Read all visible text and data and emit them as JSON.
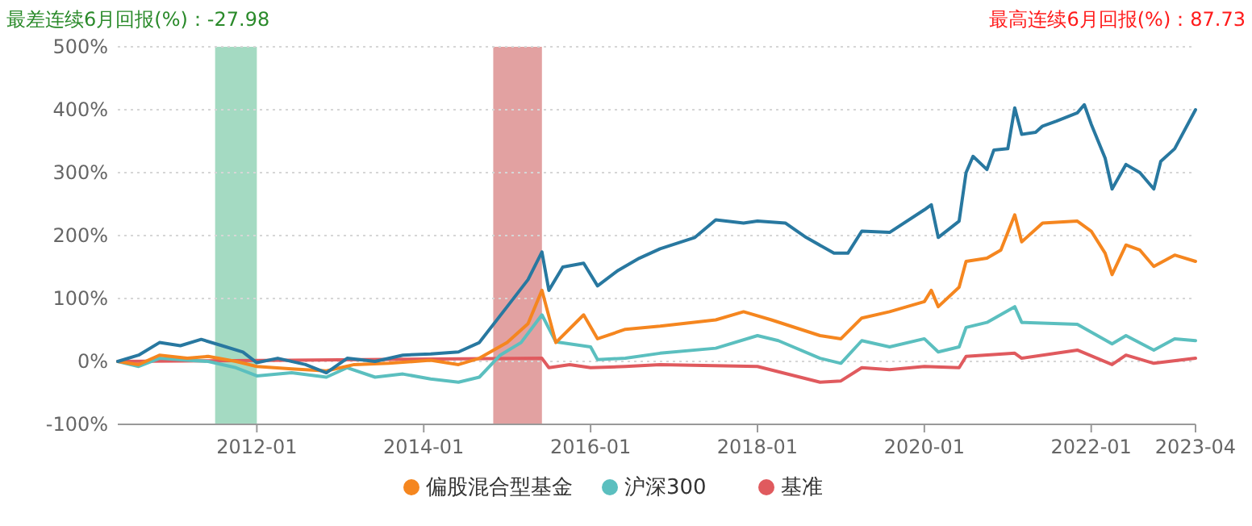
{
  "chart_data": {
    "type": "line",
    "annotations": [
      "最差连续6月回报(%)：-27.98",
      "最高连续6月回报(%)：87.73"
    ],
    "xlim": [
      "2010-05",
      "2023-04"
    ],
    "xticks": [
      "2012-01",
      "2014-01",
      "2016-01",
      "2018-01",
      "2020-01",
      "2022-01",
      "2023-04"
    ],
    "ylim": [
      -100,
      500
    ],
    "yticks": [
      {
        "value": -100,
        "label": "-100%"
      },
      {
        "value": 0,
        "label": "0%"
      },
      {
        "value": 100,
        "label": "100%"
      },
      {
        "value": 200,
        "label": "200%"
      },
      {
        "value": 300,
        "label": "300%"
      },
      {
        "value": 400,
        "label": "400%"
      },
      {
        "value": 500,
        "label": "500%"
      }
    ],
    "grid": "y",
    "legend": "bottom",
    "marker": "none",
    "line_style": "solid",
    "bands": [
      {
        "axis": "x",
        "from": "2011-07",
        "to": "2012-01",
        "color": "#9fd8bf"
      },
      {
        "axis": "x",
        "from": "2014-11",
        "to": "2015-06",
        "color": "#e09c9c"
      }
    ],
    "series": [
      {
        "color": "#2878a0",
        "x": [
          "2010-05",
          "2010-08",
          "2010-11",
          "2011-02",
          "2011-05",
          "2011-08",
          "2011-11",
          "2012-01",
          "2012-04",
          "2012-08",
          "2012-11",
          "2013-02",
          "2013-06",
          "2013-10",
          "2014-02",
          "2014-06",
          "2014-09",
          "2015-01",
          "2015-04",
          "2015-06",
          "2015-07",
          "2015-09",
          "2015-12",
          "2016-02",
          "2016-05",
          "2016-08",
          "2016-11",
          "2017-04",
          "2017-07",
          "2017-11",
          "2018-01",
          "2018-05",
          "2018-08",
          "2018-12",
          "2019-02",
          "2019-04",
          "2019-08",
          "2020-01",
          "2020-02",
          "2020-03",
          "2020-06",
          "2020-07",
          "2020-08",
          "2020-10",
          "2020-11",
          "2021-01",
          "2021-02",
          "2021-03",
          "2021-05",
          "2021-06",
          "2021-08",
          "2021-11",
          "2021-12",
          "2022-01",
          "2022-03",
          "2022-04",
          "2022-06",
          "2022-08",
          "2022-10",
          "2022-11",
          "2023-01",
          "2023-04"
        ],
        "values": [
          0,
          10,
          30,
          25,
          35,
          25,
          15,
          -2,
          5,
          -5,
          -18,
          5,
          0,
          10,
          12,
          15,
          30,
          87,
          130,
          174,
          113,
          150,
          156,
          120,
          145,
          164,
          179,
          197,
          225,
          220,
          223,
          220,
          197,
          172,
          172,
          207,
          205,
          241,
          249,
          197,
          223,
          300,
          326,
          305,
          336,
          338,
          403,
          361,
          364,
          374,
          382,
          395,
          408,
          377,
          323,
          274,
          313,
          300,
          274,
          318,
          338,
          400
        ]
      },
      {
        "name": "偏股混合型基金",
        "color": "#f5861f",
        "x": [
          "2010-05",
          "2010-08",
          "2010-11",
          "2011-03",
          "2011-06",
          "2011-10",
          "2012-01",
          "2012-06",
          "2012-11",
          "2013-03",
          "2013-08",
          "2014-02",
          "2014-06",
          "2014-09",
          "2015-01",
          "2015-04",
          "2015-06",
          "2015-08",
          "2015-12",
          "2016-02",
          "2016-06",
          "2016-11",
          "2017-07",
          "2017-11",
          "2018-03",
          "2018-10",
          "2019-01",
          "2019-04",
          "2019-08",
          "2020-01",
          "2020-02",
          "2020-03",
          "2020-06",
          "2020-07",
          "2020-10",
          "2020-12",
          "2021-02",
          "2021-03",
          "2021-06",
          "2021-11",
          "2022-01",
          "2022-03",
          "2022-04",
          "2022-06",
          "2022-08",
          "2022-10",
          "2023-01",
          "2023-04"
        ],
        "values": [
          0,
          -5,
          10,
          5,
          8,
          0,
          -8,
          -12,
          -15,
          -5,
          -3,
          2,
          -5,
          5,
          30,
          60,
          113,
          30,
          74,
          36,
          51,
          56,
          66,
          79,
          66,
          41,
          36,
          69,
          79,
          95,
          113,
          87,
          118,
          159,
          164,
          177,
          233,
          190,
          220,
          223,
          207,
          172,
          138,
          185,
          177,
          151,
          169,
          159
        ]
      },
      {
        "name": "沪深300",
        "color": "#5bbfbf",
        "x": [
          "2010-05",
          "2010-08",
          "2010-11",
          "2011-03",
          "2011-06",
          "2011-10",
          "2012-01",
          "2012-06",
          "2012-11",
          "2013-02",
          "2013-06",
          "2013-10",
          "2014-02",
          "2014-06",
          "2014-09",
          "2014-12",
          "2015-03",
          "2015-06",
          "2015-08",
          "2016-01",
          "2016-02",
          "2016-06",
          "2016-11",
          "2017-07",
          "2018-01",
          "2018-04",
          "2018-10",
          "2019-01",
          "2019-04",
          "2019-08",
          "2020-01",
          "2020-03",
          "2020-06",
          "2020-07",
          "2020-10",
          "2021-02",
          "2021-03",
          "2021-11",
          "2022-04",
          "2022-06",
          "2022-10",
          "2023-01",
          "2023-04"
        ],
        "values": [
          0,
          -8,
          5,
          2,
          0,
          -10,
          -23,
          -18,
          -25,
          -10,
          -25,
          -20,
          -28,
          -33,
          -25,
          10,
          30,
          74,
          31,
          23,
          3,
          5,
          13,
          21,
          41,
          33,
          5,
          -3,
          33,
          23,
          36,
          15,
          23,
          54,
          62,
          87,
          62,
          59,
          28,
          41,
          18,
          36,
          33
        ]
      },
      {
        "name": "基准",
        "color": "#e05a5e",
        "x": [
          "2010-05",
          "2012-06",
          "2015-06",
          "2015-07",
          "2015-10",
          "2016-01",
          "2016-06",
          "2016-11",
          "2018-01",
          "2018-10",
          "2019-01",
          "2019-04",
          "2019-08",
          "2020-01",
          "2020-06",
          "2020-07",
          "2021-02",
          "2021-03",
          "2021-11",
          "2022-04",
          "2022-06",
          "2022-10",
          "2023-04"
        ],
        "values": [
          0,
          2,
          5,
          -10,
          -5,
          -10,
          -8,
          -5,
          -8,
          -33,
          -31,
          -10,
          -13,
          -8,
          -10,
          8,
          13,
          5,
          18,
          -5,
          10,
          -3,
          5
        ]
      }
    ]
  }
}
